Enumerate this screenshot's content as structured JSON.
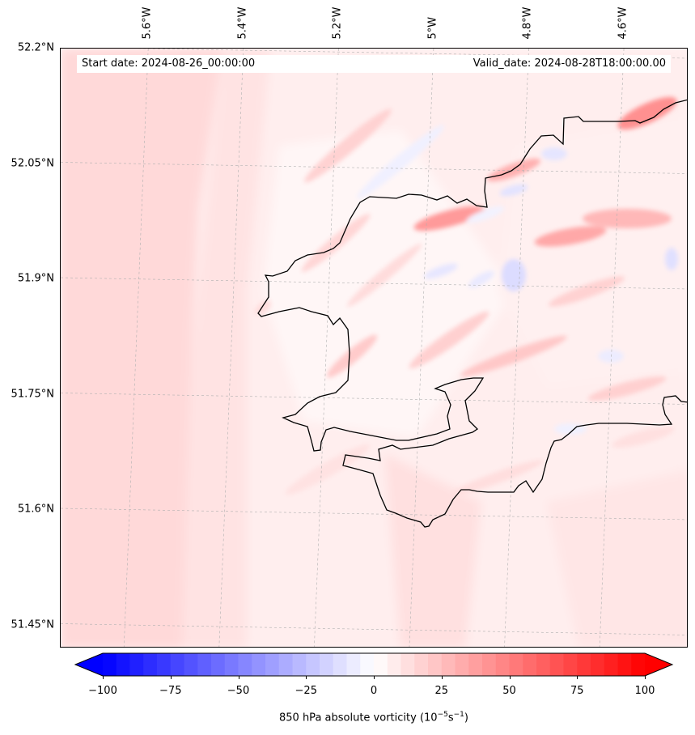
{
  "header": {
    "start_date": "Start date: 2024-08-26_00:00:00",
    "valid_date": "Valid_date: 2024-08-28T18:00:00.00"
  },
  "axes": {
    "lon_ticks": [
      "5.6°W",
      "5.4°W",
      "5.2°W",
      "5°W",
      "4.8°W",
      "4.6°W"
    ],
    "lat_ticks": [
      "52.2°N",
      "52.05°N",
      "51.9°N",
      "51.75°N",
      "51.6°N",
      "51.45°N"
    ],
    "lon_values": [
      -5.6,
      -5.4,
      -5.2,
      -5.0,
      -4.8,
      -4.6
    ],
    "lat_values": [
      52.2,
      52.05,
      51.9,
      51.75,
      51.6,
      51.45
    ],
    "lon_range": [
      -5.75,
      -4.43
    ],
    "lat_range": [
      51.42,
      52.2
    ]
  },
  "field": {
    "variable": "850 hPa absolute vorticity",
    "colormap": "bwr",
    "min": -100,
    "max": 100,
    "levels": 41,
    "background_value": 10
  },
  "colorbar": {
    "ticks": [
      "−100",
      "−75",
      "−50",
      "−25",
      "0",
      "25",
      "50",
      "75",
      "100"
    ],
    "tick_values": [
      -100,
      -75,
      -50,
      -25,
      0,
      25,
      50,
      75,
      100
    ],
    "label_prefix": "850 hPa absolute vorticity (10",
    "label_exp1": "−5",
    "label_mid": "s",
    "label_exp2": "−1",
    "label_suffix": ")",
    "extend": "both"
  },
  "colors": {
    "coastline": "#000000",
    "gridline": "#b0b0b0",
    "max": "#ff0000",
    "min": "#0000ff"
  }
}
